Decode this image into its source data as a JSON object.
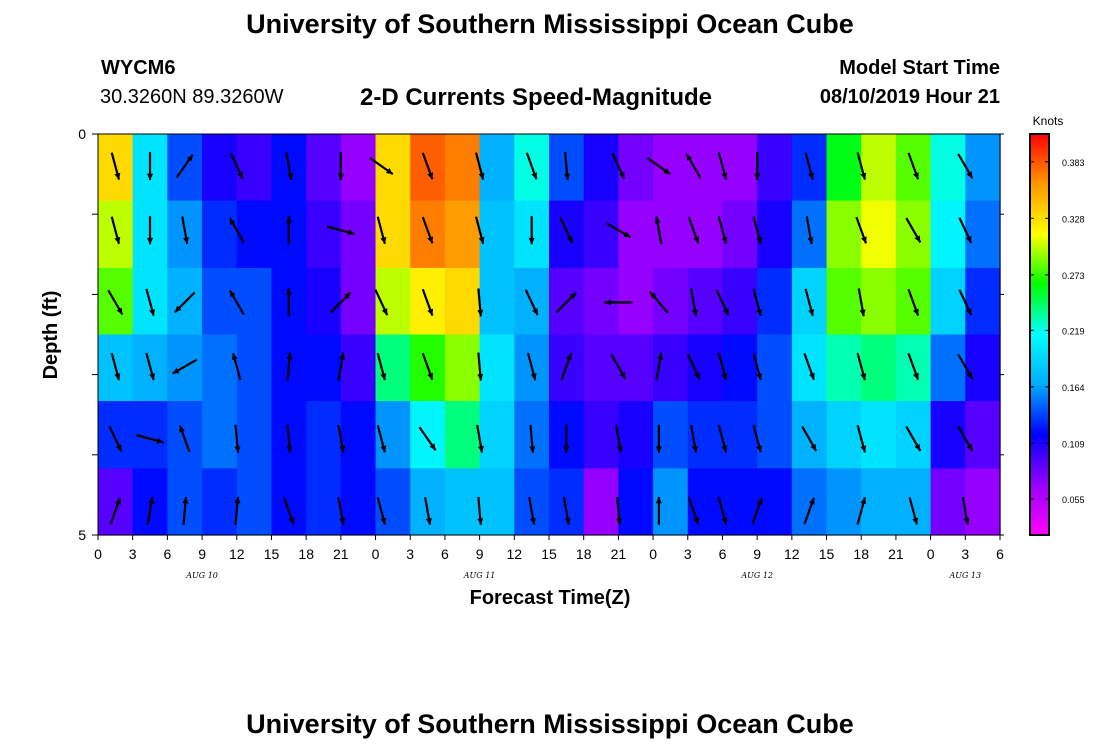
{
  "header": {
    "title": "University of Southern Mississippi Ocean Cube",
    "station_id": "WYCM6",
    "coordinates": "30.3260N 89.3260W",
    "chart_title": "2-D Currents Speed-Magnitude",
    "start_label": "Model Start Time",
    "start_value": "08/10/2019 Hour 21"
  },
  "footer": {
    "title": "University of Southern Mississippi Ocean Cube"
  },
  "colors": {
    "scale": [
      "#ff00ff",
      "#9900ff",
      "#0000ff",
      "#00aaff",
      "#00ffff",
      "#00ff00",
      "#ffff00",
      "#ff9900",
      "#ff0000"
    ],
    "arrow": "#000000",
    "frame": "#000000"
  },
  "chart_data": {
    "type": "heatmap",
    "title": "2-D Currents Speed-Magnitude",
    "xlabel": "Forecast Time(Z)",
    "ylabel": "Depth (ft)",
    "x_tick_labels": [
      "0",
      "3",
      "6",
      "9",
      "12",
      "15",
      "18",
      "21",
      "0",
      "3",
      "6",
      "9",
      "12",
      "15",
      "18",
      "21",
      "0",
      "3",
      "6",
      "9",
      "12",
      "15",
      "18",
      "21",
      "0",
      "3",
      "6"
    ],
    "day_labels": [
      "AUG 10",
      "AUG 11",
      "AUG 12",
      "AUG 13"
    ],
    "y_tick_labels": [
      "0",
      "5"
    ],
    "ylim": [
      0,
      5
    ],
    "colorbar": {
      "title": "Knots",
      "ticks": [
        0.383,
        0.328,
        0.273,
        0.219,
        0.164,
        0.109,
        0.055
      ],
      "range": [
        0.02,
        0.41
      ]
    },
    "time_hours": [
      0,
      3,
      6,
      9,
      12,
      15,
      18,
      21,
      24,
      27,
      30,
      33,
      36,
      39,
      42,
      45,
      48,
      51,
      54,
      57,
      60,
      63,
      66,
      69,
      72,
      75,
      78
    ],
    "depth_bins_ft": [
      0.0,
      0.83,
      1.67,
      2.5,
      3.33,
      4.17
    ],
    "speed_knots": [
      [
        0.33,
        0.2,
        0.14,
        0.11,
        0.1,
        0.12,
        0.09,
        0.07,
        0.33,
        0.38,
        0.37,
        0.17,
        0.22,
        0.14,
        0.11,
        0.08,
        0.07,
        0.07,
        0.07,
        0.1,
        0.13,
        0.26,
        0.3,
        0.28,
        0.22,
        0.16,
        0.1
      ],
      [
        0.3,
        0.2,
        0.16,
        0.13,
        0.12,
        0.12,
        0.1,
        0.08,
        0.33,
        0.37,
        0.36,
        0.18,
        0.2,
        0.11,
        0.1,
        0.07,
        0.07,
        0.07,
        0.08,
        0.11,
        0.15,
        0.29,
        0.31,
        0.29,
        0.21,
        0.15,
        0.09
      ],
      [
        0.28,
        0.2,
        0.17,
        0.14,
        0.14,
        0.12,
        0.11,
        0.08,
        0.3,
        0.32,
        0.33,
        0.18,
        0.17,
        0.09,
        0.08,
        0.07,
        0.08,
        0.09,
        0.1,
        0.13,
        0.19,
        0.28,
        0.29,
        0.28,
        0.19,
        0.13,
        0.09
      ],
      [
        0.18,
        0.17,
        0.16,
        0.15,
        0.14,
        0.12,
        0.12,
        0.1,
        0.24,
        0.27,
        0.29,
        0.2,
        0.16,
        0.1,
        0.09,
        0.09,
        0.1,
        0.11,
        0.12,
        0.14,
        0.2,
        0.23,
        0.24,
        0.23,
        0.15,
        0.11,
        0.09
      ],
      [
        0.13,
        0.13,
        0.14,
        0.15,
        0.14,
        0.12,
        0.13,
        0.12,
        0.16,
        0.21,
        0.24,
        0.19,
        0.15,
        0.12,
        0.1,
        0.11,
        0.14,
        0.13,
        0.13,
        0.14,
        0.17,
        0.19,
        0.2,
        0.19,
        0.11,
        0.09,
        0.09
      ],
      [
        0.09,
        0.12,
        0.14,
        0.13,
        0.14,
        0.12,
        0.13,
        0.12,
        0.14,
        0.17,
        0.18,
        0.18,
        0.14,
        0.13,
        0.07,
        0.12,
        0.16,
        0.12,
        0.12,
        0.12,
        0.15,
        0.16,
        0.17,
        0.17,
        0.08,
        0.07,
        0.08
      ]
    ],
    "arrow_times": [
      1.5,
      4.5,
      7.5,
      12,
      16.5,
      21,
      24.5,
      28.5,
      33,
      37.5,
      40.5,
      45,
      48.5,
      51.5,
      54,
      57,
      61.5,
      66,
      70.5,
      75
    ],
    "arrow_depths": [
      0.4,
      1.2,
      2.1,
      2.9,
      3.8,
      4.7
    ],
    "direction_deg": [
      [
        165,
        180,
        35,
        155,
        170,
        180,
        125,
        160,
        165,
        160,
        175,
        155,
        125,
        330,
        165,
        180,
        165,
        165,
        160,
        150
      ],
      [
        165,
        180,
        170,
        330,
        0,
        105,
        165,
        160,
        165,
        180,
        155,
        120,
        350,
        160,
        165,
        165,
        170,
        160,
        150,
        155
      ],
      [
        150,
        165,
        225,
        330,
        0,
        45,
        155,
        160,
        175,
        155,
        45,
        270,
        320,
        170,
        155,
        165,
        165,
        170,
        160,
        155
      ],
      [
        165,
        165,
        240,
        345,
        5,
        10,
        165,
        160,
        175,
        165,
        20,
        150,
        10,
        155,
        165,
        165,
        160,
        165,
        160,
        150
      ],
      [
        155,
        105,
        340,
        175,
        175,
        170,
        165,
        145,
        170,
        175,
        180,
        170,
        180,
        170,
        165,
        165,
        150,
        165,
        150,
        150
      ],
      [
        20,
        10,
        5,
        5,
        160,
        170,
        165,
        170,
        175,
        170,
        170,
        175,
        0,
        160,
        165,
        20,
        20,
        15,
        165,
        170
      ]
    ]
  },
  "icons": {
    "scalebar_end": "black-bar-marker"
  }
}
